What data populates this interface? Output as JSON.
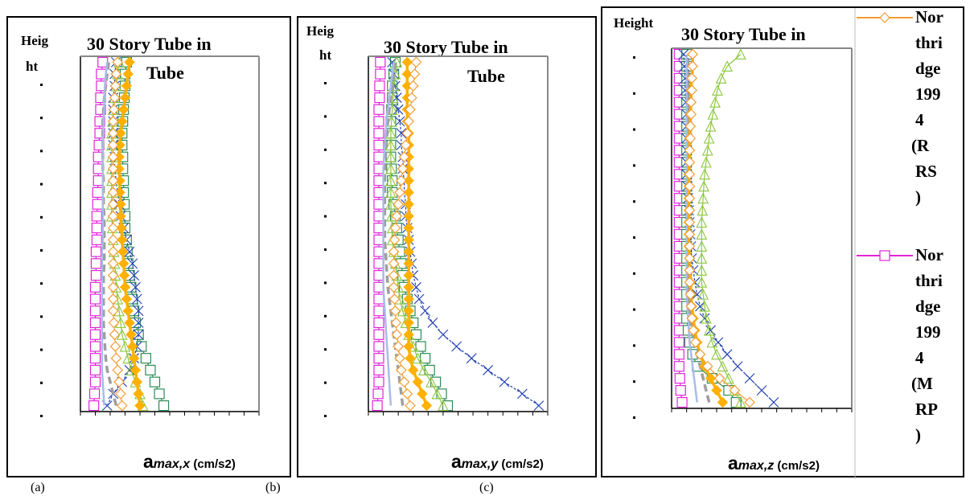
{
  "subfigure_labels": [
    "(a)",
    "(b)",
    "(c)"
  ],
  "legend": [
    {
      "label": "Northridge 1994 (RRS)",
      "color": "#F39C33",
      "marker": "diamond-open"
    },
    {
      "label": "Northridge 1994 (MRP)",
      "color": "#E024D8",
      "marker": "square-open"
    }
  ],
  "chart_data": [
    {
      "type": "line",
      "title": "30 Story Tube in Tube",
      "ylabel": "Height",
      "xlabel_symbol": "a",
      "xlabel_sub": "max,x",
      "xlabel_unit": "(cm/s2)",
      "series": [
        {
          "name": "Northridge 1994 (MRP)",
          "color": "#E024D8",
          "marker": "square-open",
          "dash": "solid",
          "values": [
            0.9,
            0.95,
            1.0,
            1.0,
            1.0,
            1.0,
            1.0,
            1.0,
            1.0,
            1.0,
            1.0,
            1.05,
            1.05,
            1.05,
            1.1,
            1.1,
            1.1,
            1.15,
            1.15,
            1.2,
            1.2,
            1.2,
            1.25,
            1.3,
            1.3,
            1.35,
            1.35,
            1.4,
            1.4,
            1.5
          ]
        },
        {
          "name": "",
          "color": "#2E8B57",
          "marker": "square-open",
          "dash": "solid",
          "values": [
            5.6,
            5.3,
            5.0,
            4.7,
            4.4,
            4.1,
            3.9,
            3.7,
            3.6,
            3.5,
            3.4,
            3.3,
            3.2,
            3.15,
            3.1,
            3.0,
            3.0,
            2.95,
            2.9,
            2.9,
            2.85,
            2.85,
            2.8,
            2.8,
            2.85,
            2.9,
            2.95,
            3.0,
            3.0,
            3.1
          ]
        },
        {
          "name": "",
          "color": "#1F3FB0",
          "marker": "x",
          "dash": "dashed",
          "values": [
            1.8,
            2.2,
            2.8,
            3.3,
            3.6,
            3.8,
            3.9,
            3.9,
            3.9,
            3.8,
            3.7,
            3.6,
            3.5,
            3.3,
            3.1,
            2.9,
            2.7,
            2.6,
            2.5,
            2.4,
            2.3,
            2.3,
            2.2,
            2.2,
            2.2,
            2.2,
            2.2,
            2.3,
            2.3,
            2.4
          ]
        },
        {
          "name": "",
          "color": "#8DC63F",
          "marker": "triangle-open",
          "dash": "solid",
          "values": [
            4.2,
            4.0,
            3.7,
            3.4,
            3.2,
            3.0,
            2.8,
            2.7,
            2.6,
            2.5,
            2.4,
            2.35,
            2.3,
            2.25,
            2.2,
            2.15,
            2.1,
            2.1,
            2.1,
            2.1,
            2.1,
            2.1,
            2.1,
            2.1,
            2.15,
            2.2,
            2.3,
            2.4,
            2.5,
            2.6
          ]
        },
        {
          "name": "",
          "color": "#9E9E9E",
          "marker": "none",
          "dash": "longdash",
          "values": [
            2.4,
            2.2,
            2.0,
            1.8,
            1.7,
            1.65,
            1.6,
            1.55,
            1.55,
            1.55,
            1.55,
            1.55,
            1.6,
            1.6,
            1.6,
            1.6,
            1.6,
            1.55,
            1.55,
            1.55,
            1.5,
            1.5,
            1.5,
            1.5,
            1.5,
            1.55,
            1.6,
            1.7,
            1.8,
            1.9
          ]
        },
        {
          "name": "",
          "color": "#A7BCE8",
          "marker": "none",
          "dash": "solid",
          "values": [
            1.6,
            1.55,
            1.5,
            1.45,
            1.45,
            1.45,
            1.45,
            1.45,
            1.45,
            1.45,
            1.45,
            1.45,
            1.45,
            1.45,
            1.5,
            1.5,
            1.5,
            1.5,
            1.5,
            1.5,
            1.5,
            1.5,
            1.5,
            1.55,
            1.55,
            1.6,
            1.6,
            1.65,
            1.7,
            1.8
          ]
        },
        {
          "name": "",
          "color": "#FFB000",
          "marker": "diamond-filled",
          "dash": "solid",
          "values": [
            4.0,
            3.9,
            3.8,
            3.7,
            3.6,
            3.5,
            3.4,
            3.3,
            3.2,
            3.1,
            3.0,
            2.95,
            2.9,
            2.85,
            2.8,
            2.75,
            2.7,
            2.7,
            2.65,
            2.65,
            2.6,
            2.6,
            2.65,
            2.7,
            2.8,
            2.9,
            3.0,
            3.1,
            3.2,
            3.3
          ]
        },
        {
          "name": "Northridge 1994 (RRS)",
          "color": "#F39C33",
          "marker": "diamond-open",
          "dash": "solid",
          "values": [
            2.8,
            2.7,
            2.6,
            2.5,
            2.4,
            2.35,
            2.3,
            2.25,
            2.2,
            2.2,
            2.2,
            2.2,
            2.2,
            2.2,
            2.2,
            2.2,
            2.2,
            2.2,
            2.2,
            2.2,
            2.2,
            2.2,
            2.2,
            2.2,
            2.2,
            2.25,
            2.3,
            2.35,
            2.4,
            2.5
          ]
        }
      ]
    },
    {
      "type": "line",
      "title": "30 Story Tube in Tube",
      "ylabel": "Height",
      "xlabel_symbol": "a",
      "xlabel_sub": "max,y",
      "xlabel_unit": "(cm/s2)",
      "series": [
        {
          "name": "Northridge 1994 (MRP)",
          "color": "#E024D8",
          "marker": "square-open",
          "dash": "solid",
          "values": [
            0.6,
            0.65,
            0.7,
            0.7,
            0.7,
            0.7,
            0.7,
            0.7,
            0.7,
            0.7,
            0.7,
            0.7,
            0.7,
            0.7,
            0.7,
            0.7,
            0.7,
            0.7,
            0.7,
            0.7,
            0.7,
            0.7,
            0.7,
            0.7,
            0.7,
            0.7,
            0.75,
            0.75,
            0.8,
            0.8
          ]
        },
        {
          "name": "",
          "color": "#2E8B57",
          "marker": "square-open",
          "dash": "solid",
          "values": [
            5.3,
            4.9,
            4.5,
            4.1,
            3.8,
            3.5,
            3.2,
            3.0,
            2.8,
            2.6,
            2.4,
            2.3,
            2.2,
            2.1,
            2.0,
            1.9,
            1.8,
            1.7,
            1.6,
            1.6,
            1.55,
            1.5,
            1.5,
            1.5,
            1.5,
            1.55,
            1.6,
            1.6,
            1.7,
            1.8
          ]
        },
        {
          "name": "",
          "color": "#1F3FB0",
          "marker": "x",
          "dash": "dashed",
          "values": [
            11.4,
            10.3,
            9.1,
            8.0,
            6.9,
            5.9,
            5.0,
            4.3,
            3.8,
            3.4,
            3.2,
            3.0,
            2.9,
            2.8,
            2.7,
            2.6,
            2.5,
            2.5,
            2.4,
            2.4,
            2.3,
            2.3,
            2.2,
            2.2,
            2.1,
            2.0,
            1.9,
            1.8,
            1.7,
            1.6
          ]
        },
        {
          "name": "",
          "color": "#8DC63F",
          "marker": "triangle-open",
          "dash": "solid",
          "values": [
            5.0,
            4.6,
            4.2,
            3.7,
            3.3,
            3.0,
            2.7,
            2.5,
            2.3,
            2.1,
            2.0,
            1.9,
            1.8,
            1.7,
            1.6,
            1.6,
            1.55,
            1.5,
            1.5,
            1.5,
            1.5,
            1.5,
            1.5,
            1.5,
            1.55,
            1.6,
            1.65,
            1.7,
            1.8,
            1.9
          ]
        },
        {
          "name": "",
          "color": "#9E9E9E",
          "marker": "none",
          "dash": "longdash",
          "values": [
            2.3,
            2.2,
            2.1,
            2.0,
            1.9,
            1.8,
            1.7,
            1.6,
            1.5,
            1.4,
            1.3,
            1.25,
            1.2,
            1.15,
            1.1,
            1.1,
            1.1,
            1.1,
            1.1,
            1.1,
            1.1,
            1.15,
            1.2,
            1.25,
            1.3,
            1.4,
            1.5,
            1.6,
            1.7,
            1.8
          ]
        },
        {
          "name": "",
          "color": "#A7BCE8",
          "marker": "none",
          "dash": "solid",
          "values": [
            1.5,
            1.45,
            1.4,
            1.35,
            1.3,
            1.25,
            1.2,
            1.15,
            1.1,
            1.05,
            1.0,
            1.0,
            1.0,
            1.0,
            1.0,
            1.0,
            1.0,
            1.0,
            1.0,
            1.0,
            1.0,
            1.05,
            1.1,
            1.15,
            1.2,
            1.3,
            1.4,
            1.5,
            1.6,
            1.7
          ]
        },
        {
          "name": "",
          "color": "#FFB000",
          "marker": "diamond-filled",
          "dash": "solid",
          "values": [
            3.9,
            3.6,
            3.3,
            3.0,
            2.8,
            2.7,
            2.7,
            2.7,
            2.7,
            2.7,
            2.7,
            2.7,
            2.7,
            2.7,
            2.7,
            2.7,
            2.7,
            2.7,
            2.7,
            2.7,
            2.7,
            2.7,
            2.7,
            2.7,
            2.6,
            2.6,
            2.6,
            2.6,
            2.6,
            2.6
          ]
        },
        {
          "name": "Northridge 1994 (RRS)",
          "color": "#F39C33",
          "marker": "diamond-open",
          "dash": "solid",
          "values": [
            2.8,
            2.6,
            2.4,
            2.2,
            2.1,
            2.0,
            1.9,
            1.85,
            1.8,
            1.75,
            1.7,
            1.7,
            1.7,
            1.7,
            1.75,
            1.8,
            1.9,
            2.0,
            2.1,
            2.2,
            2.3,
            2.4,
            2.5,
            2.6,
            2.7,
            2.8,
            2.9,
            3.0,
            3.1,
            3.2
          ]
        }
      ]
    },
    {
      "type": "line",
      "title": "30 Story Tube in",
      "ylabel": "Height",
      "xlabel_symbol": "a",
      "xlabel_sub": "max,z",
      "xlabel_unit": "(cm/s2)",
      "series": [
        {
          "name": "Northridge 1994 (MRP)",
          "color": "#E024D8",
          "marker": "square-open",
          "dash": "solid",
          "values": [
            0.7,
            0.6,
            0.55,
            0.5,
            0.5,
            0.5,
            0.5,
            0.5,
            0.5,
            0.5,
            0.5,
            0.5,
            0.5,
            0.5,
            0.5,
            0.5,
            0.5,
            0.5,
            0.5,
            0.5,
            0.5,
            0.5,
            0.5,
            0.5,
            0.5,
            0.5,
            0.5,
            0.5,
            0.5,
            0.5
          ]
        },
        {
          "name": "",
          "color": "#2E8B57",
          "marker": "square-open",
          "dash": "solid",
          "values": [
            4.3,
            3.8,
            2.7,
            1.7,
            1.4,
            1.2,
            1.1,
            1.0,
            1.0,
            1.0,
            1.0,
            1.0,
            1.0,
            1.0,
            1.0,
            1.0,
            1.0,
            1.0,
            1.0,
            1.0,
            1.0,
            1.0,
            1.0,
            1.0,
            1.0,
            1.0,
            1.0,
            1.0,
            1.0,
            1.0
          ]
        },
        {
          "name": "",
          "color": "#1F3FB0",
          "marker": "x",
          "dash": "dashed",
          "values": [
            6.8,
            6.0,
            5.2,
            4.4,
            3.7,
            3.1,
            2.6,
            2.2,
            1.9,
            1.7,
            1.55,
            1.45,
            1.35,
            1.3,
            1.25,
            1.2,
            1.15,
            1.1,
            1.05,
            1.0,
            1.0,
            1.0,
            1.0,
            1.0,
            1.0,
            0.95,
            0.9,
            0.9,
            0.85,
            0.8
          ]
        },
        {
          "name": "",
          "color": "#8DC63F",
          "marker": "triangle-open",
          "dash": "solid",
          "values": [
            4.6,
            4.2,
            3.8,
            3.4,
            3.0,
            2.7,
            2.5,
            2.3,
            2.2,
            2.1,
            2.0,
            2.0,
            2.0,
            2.0,
            2.0,
            2.0,
            2.05,
            2.1,
            2.15,
            2.2,
            2.3,
            2.4,
            2.5,
            2.6,
            2.75,
            2.9,
            3.05,
            3.3,
            3.7,
            4.6
          ]
        },
        {
          "name": "",
          "color": "#9E9E9E",
          "marker": "none",
          "dash": "longdash",
          "values": [
            2.5,
            2.3,
            2.1,
            1.9,
            1.7,
            1.5,
            1.35,
            1.25,
            1.2,
            1.15,
            1.1,
            1.1,
            1.1,
            1.1,
            1.1,
            1.1,
            1.1,
            1.1,
            1.1,
            1.1,
            1.1,
            1.1,
            1.1,
            1.1,
            1.1,
            1.1,
            1.1,
            1.1,
            1.1,
            1.1
          ]
        },
        {
          "name": "",
          "color": "#A7BCE8",
          "marker": "none",
          "dash": "solid",
          "values": [
            1.7,
            1.6,
            1.5,
            1.4,
            1.3,
            1.2,
            1.15,
            1.1,
            1.05,
            1.0,
            1.0,
            1.0,
            1.0,
            1.0,
            1.0,
            1.0,
            1.0,
            1.0,
            1.0,
            1.0,
            1.0,
            1.0,
            1.0,
            1.0,
            1.0,
            1.0,
            1.0,
            1.0,
            1.0,
            1.0
          ]
        },
        {
          "name": "",
          "color": "#FFB000",
          "marker": "diamond-filled",
          "dash": "solid",
          "values": [
            3.4,
            3.0,
            2.6,
            2.2,
            1.9,
            1.7,
            1.55,
            1.45,
            1.35,
            1.3,
            1.25,
            1.2,
            1.2,
            1.15,
            1.15,
            1.15,
            1.15,
            1.15,
            1.15,
            1.15,
            1.2,
            1.2,
            1.2,
            1.25,
            1.25,
            1.3,
            1.3,
            1.35,
            1.4,
            1.4
          ]
        },
        {
          "name": "Northridge 1994 (RRS)",
          "color": "#F39C33",
          "marker": "diamond-open",
          "dash": "solid",
          "values": [
            5.2,
            4.2,
            3.2,
            2.4,
            1.9,
            1.6,
            1.45,
            1.35,
            1.3,
            1.25,
            1.2,
            1.2,
            1.2,
            1.2,
            1.2,
            1.2,
            1.2,
            1.2,
            1.2,
            1.2,
            1.2,
            1.2,
            1.25,
            1.25,
            1.3,
            1.3,
            1.35,
            1.35,
            1.4,
            1.4
          ]
        }
      ]
    }
  ]
}
